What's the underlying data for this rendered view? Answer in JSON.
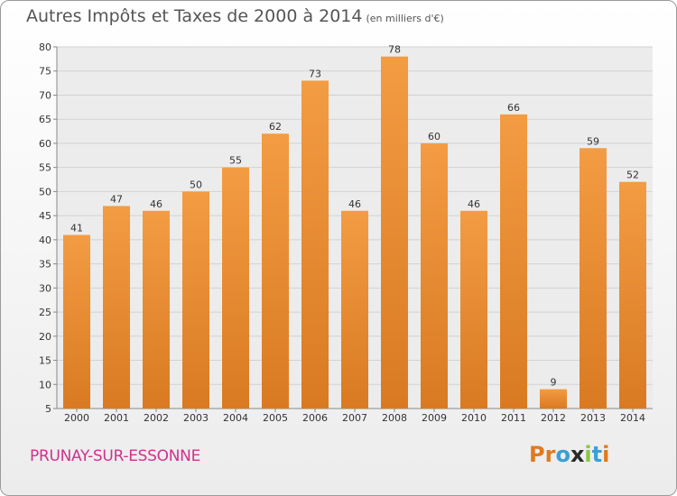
{
  "chart_data": {
    "type": "bar",
    "title": "Autres Impôts et Taxes de 2000 à 2014",
    "unit_note": "(en milliers d'€)",
    "categories": [
      "2000",
      "2001",
      "2002",
      "2003",
      "2004",
      "2005",
      "2006",
      "2007",
      "2008",
      "2009",
      "2010",
      "2011",
      "2012",
      "2013",
      "2014"
    ],
    "values": [
      41,
      47,
      46,
      50,
      55,
      62,
      73,
      46,
      78,
      60,
      46,
      66,
      9,
      59,
      52
    ],
    "ylim": [
      5,
      80
    ],
    "yticks": [
      5,
      10,
      15,
      20,
      25,
      30,
      35,
      40,
      45,
      50,
      55,
      60,
      65,
      70,
      75,
      80
    ],
    "grid": true,
    "bar_color": "#f39c43",
    "bar_color_dark": "#d97a22"
  },
  "commune": "PRUNAY-SUR-ESSONNE",
  "logo": {
    "text": "Proxiti",
    "letters": [
      "P",
      "r",
      "o",
      "x",
      "i",
      "t",
      "i"
    ],
    "colors": [
      "#e07a1e",
      "#e07a1e",
      "#3a9fd8",
      "#2a2a2a",
      "#8cc63f",
      "#3a9fd8",
      "#e07a1e"
    ]
  }
}
